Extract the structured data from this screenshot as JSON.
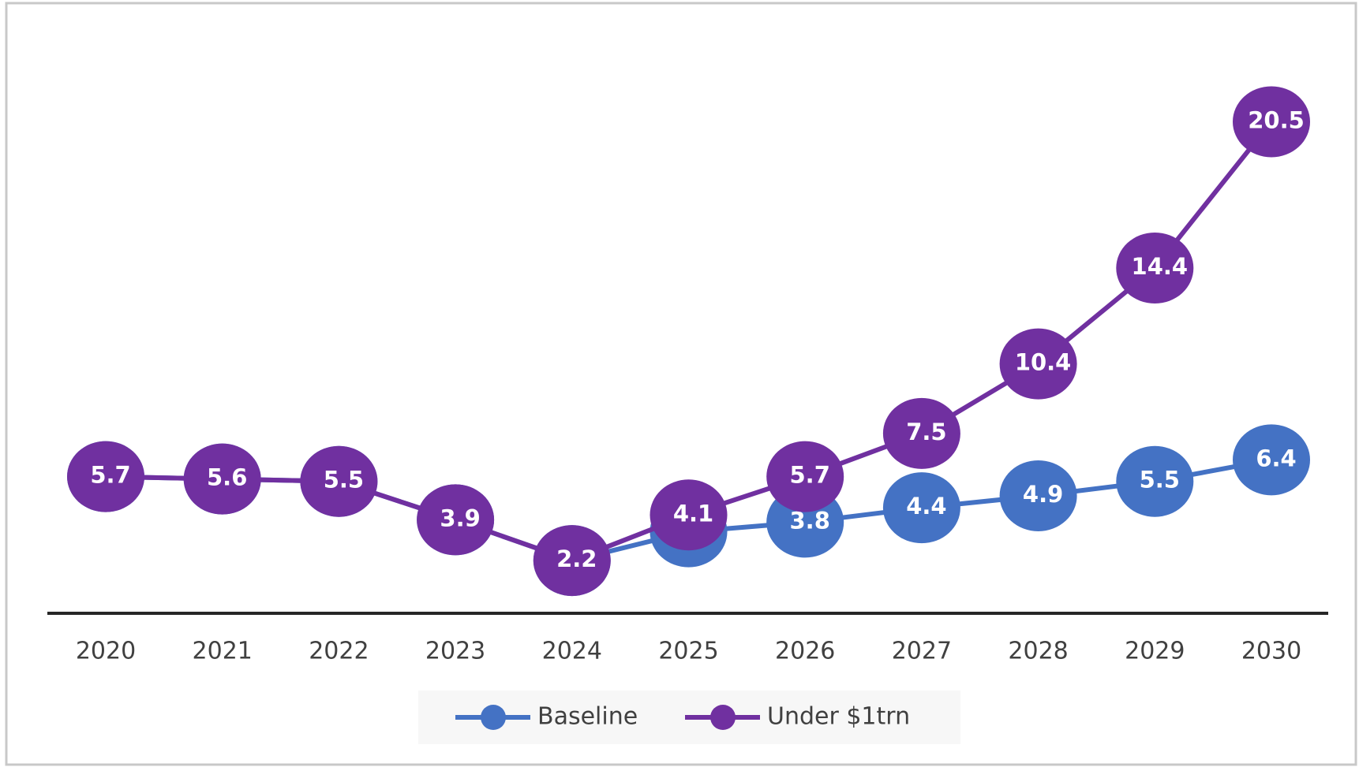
{
  "chart_data": {
    "type": "line",
    "categories": [
      "2020",
      "2021",
      "2022",
      "2023",
      "2024",
      "2025",
      "2026",
      "2027",
      "2028",
      "2029",
      "2030"
    ],
    "series": [
      {
        "name": "Baseline",
        "color": "#4472c4",
        "values": [
          5.7,
          5.6,
          5.5,
          3.9,
          2.2,
          3.4,
          3.8,
          4.4,
          4.9,
          5.5,
          6.4
        ]
      },
      {
        "name": "Under $1trn",
        "color": "#7030a0",
        "values": [
          5.7,
          5.6,
          5.5,
          3.9,
          2.2,
          4.1,
          5.7,
          7.5,
          10.4,
          14.4,
          20.5
        ]
      }
    ],
    "ylim": [
      0,
      24
    ],
    "legend": "bottom"
  }
}
